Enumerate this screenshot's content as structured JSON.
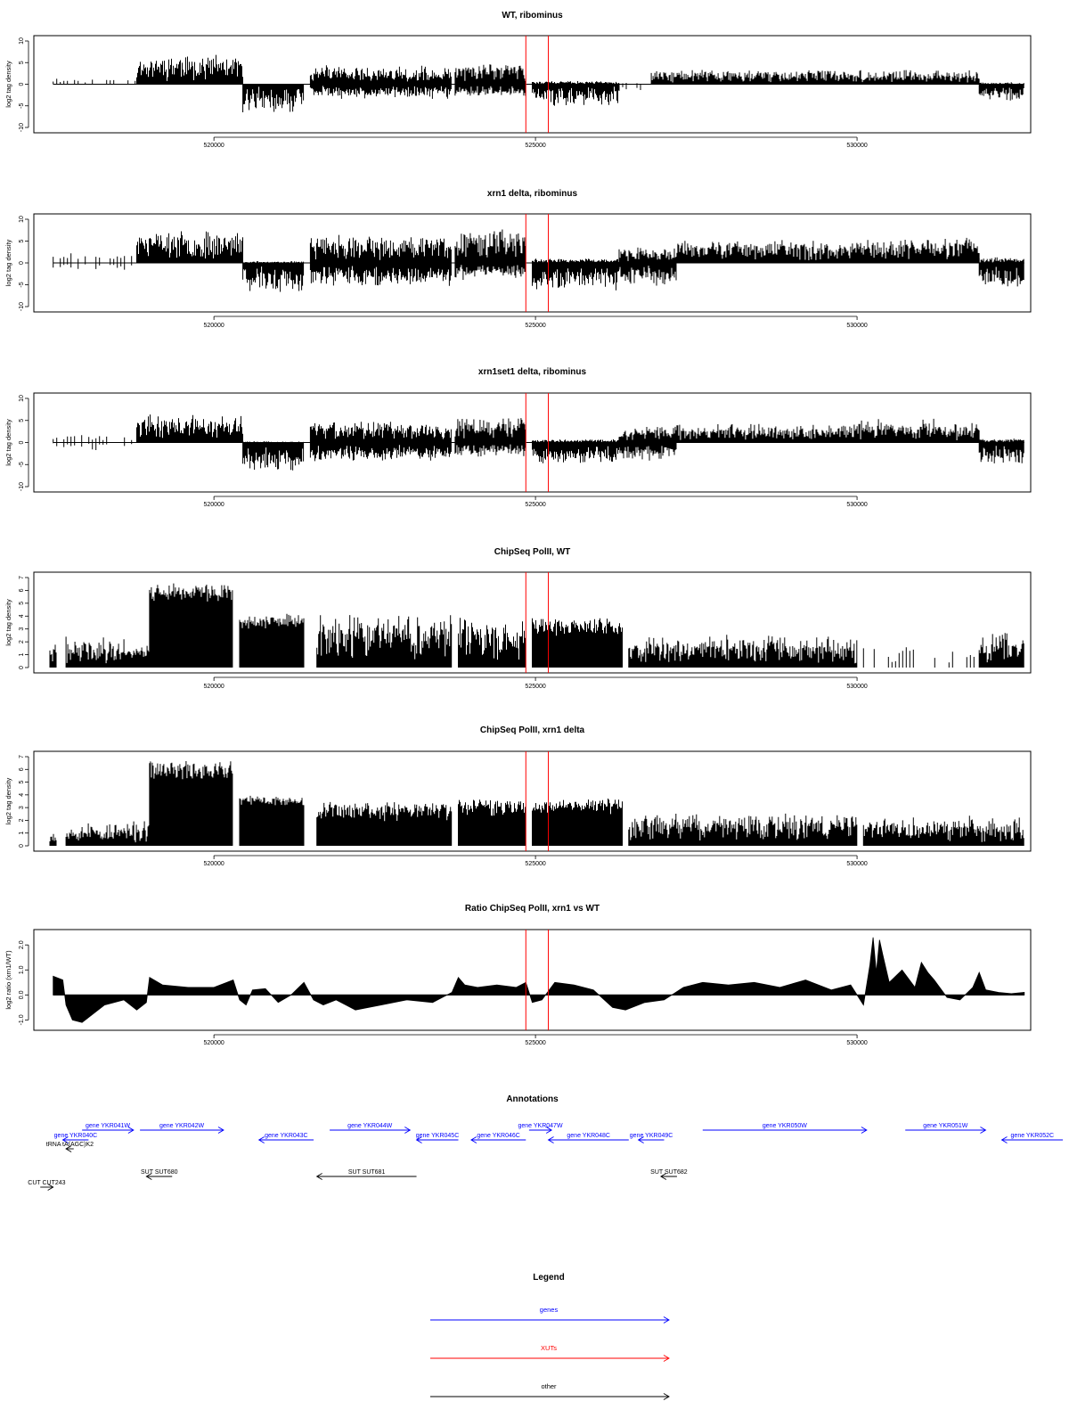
{
  "chart_data": [
    {
      "type": "bar",
      "title": "WT, ribominus",
      "ylabel": "log2 tag density",
      "ylim": [
        -10,
        10
      ],
      "yticks": [
        "-10",
        "-5",
        "0",
        "5",
        "10"
      ],
      "xlim": [
        517200,
        532700
      ],
      "xticks": [
        "520000",
        "525000",
        "530000"
      ],
      "markers": [
        524850,
        525200
      ],
      "seed": 11,
      "signed": true,
      "segments": [
        {
          "x0": 517500,
          "x1": 518800,
          "pos": [
            0.8,
            1.6
          ],
          "neg": [
            0.0,
            0.6
          ],
          "mode": "sparse"
        },
        {
          "x0": 518800,
          "x1": 520450,
          "pos": [
            4.5,
            7.0
          ],
          "neg": [
            0.0,
            0.0
          ],
          "mode": "dense"
        },
        {
          "x0": 520450,
          "x1": 521400,
          "pos": [
            0.0,
            0.0
          ],
          "neg": [
            -3.0,
            -7.0
          ],
          "mode": "dense"
        },
        {
          "x0": 521500,
          "x1": 523700,
          "pos": [
            2.0,
            4.5
          ],
          "neg": [
            -1.5,
            -3.5
          ],
          "mode": "dense"
        },
        {
          "x0": 523750,
          "x1": 524850,
          "pos": [
            3.5,
            5.0
          ],
          "neg": [
            -2.0,
            -3.0
          ],
          "mode": "dense"
        },
        {
          "x0": 524950,
          "x1": 526300,
          "pos": [
            0.3,
            0.8
          ],
          "neg": [
            -3.0,
            -5.0
          ],
          "mode": "dense"
        },
        {
          "x0": 526300,
          "x1": 526800,
          "pos": [
            0.0,
            0.5
          ],
          "neg": [
            -1.0,
            -3.0
          ],
          "mode": "sparse"
        },
        {
          "x0": 526800,
          "x1": 530000,
          "pos": [
            2.0,
            3.5
          ],
          "neg": [
            0.0,
            0.5
          ],
          "mode": "dense"
        },
        {
          "x0": 530000,
          "x1": 531900,
          "pos": [
            1.5,
            3.5
          ],
          "neg": [
            0.0,
            0.8
          ],
          "mode": "dense"
        },
        {
          "x0": 531900,
          "x1": 532600,
          "pos": [
            0.0,
            0.5
          ],
          "neg": [
            -2.5,
            -4.0
          ],
          "mode": "dense"
        }
      ]
    },
    {
      "type": "bar",
      "title": "xrn1 delta, ribominus",
      "ylabel": "log2 tag density",
      "ylim": [
        -10,
        10
      ],
      "yticks": [
        "-10",
        "-5",
        "0",
        "5",
        "10"
      ],
      "xlim": [
        517200,
        532700
      ],
      "xticks": [
        "520000",
        "525000",
        "530000"
      ],
      "markers": [
        524850,
        525200
      ],
      "seed": 23,
      "signed": true,
      "segments": [
        {
          "x0": 517500,
          "x1": 518800,
          "pos": [
            1.5,
            2.5
          ],
          "neg": [
            -0.5,
            -2.0
          ],
          "mode": "sparse"
        },
        {
          "x0": 518800,
          "x1": 520450,
          "pos": [
            4.5,
            7.5
          ],
          "neg": [
            0.0,
            0.0
          ],
          "mode": "dense"
        },
        {
          "x0": 520450,
          "x1": 521400,
          "pos": [
            0.0,
            0.5
          ],
          "neg": [
            -4.0,
            -7.5
          ],
          "mode": "dense"
        },
        {
          "x0": 521500,
          "x1": 523700,
          "pos": [
            4.0,
            6.5
          ],
          "neg": [
            -3.0,
            -5.5
          ],
          "mode": "dense"
        },
        {
          "x0": 523750,
          "x1": 524850,
          "pos": [
            5.0,
            8.0
          ],
          "neg": [
            -2.0,
            -4.0
          ],
          "mode": "dense"
        },
        {
          "x0": 524950,
          "x1": 526300,
          "pos": [
            0.5,
            1.0
          ],
          "neg": [
            -4.0,
            -6.5
          ],
          "mode": "dense"
        },
        {
          "x0": 526300,
          "x1": 527200,
          "pos": [
            2.0,
            4.0
          ],
          "neg": [
            -2.0,
            -6.0
          ],
          "mode": "dense"
        },
        {
          "x0": 527200,
          "x1": 530000,
          "pos": [
            3.5,
            5.5
          ],
          "neg": [
            0.0,
            0.8
          ],
          "mode": "dense"
        },
        {
          "x0": 530000,
          "x1": 531900,
          "pos": [
            4.0,
            6.0
          ],
          "neg": [
            0.0,
            1.0
          ],
          "mode": "dense"
        },
        {
          "x0": 531900,
          "x1": 532600,
          "pos": [
            0.5,
            1.5
          ],
          "neg": [
            -4.0,
            -6.5
          ],
          "mode": "dense"
        }
      ]
    },
    {
      "type": "bar",
      "title": "xrn1set1 delta, ribominus",
      "ylabel": "log2 tag density",
      "ylim": [
        -10,
        10
      ],
      "yticks": [
        "-10",
        "-5",
        "0",
        "5",
        "10"
      ],
      "xlim": [
        517200,
        532700
      ],
      "xticks": [
        "520000",
        "525000",
        "530000"
      ],
      "markers": [
        524850,
        525200
      ],
      "seed": 37,
      "signed": true,
      "segments": [
        {
          "x0": 517500,
          "x1": 518800,
          "pos": [
            1.2,
            2.2
          ],
          "neg": [
            -0.5,
            -2.0
          ],
          "mode": "sparse"
        },
        {
          "x0": 518800,
          "x1": 520450,
          "pos": [
            4.0,
            6.5
          ],
          "neg": [
            0.0,
            0.0
          ],
          "mode": "dense"
        },
        {
          "x0": 520450,
          "x1": 521400,
          "pos": [
            0.0,
            0.3
          ],
          "neg": [
            -4.0,
            -7.0
          ],
          "mode": "dense"
        },
        {
          "x0": 521500,
          "x1": 523700,
          "pos": [
            3.0,
            5.0
          ],
          "neg": [
            -2.5,
            -4.5
          ],
          "mode": "dense"
        },
        {
          "x0": 523750,
          "x1": 524850,
          "pos": [
            4.0,
            6.5
          ],
          "neg": [
            -2.0,
            -3.5
          ],
          "mode": "dense"
        },
        {
          "x0": 524950,
          "x1": 526300,
          "pos": [
            0.3,
            0.8
          ],
          "neg": [
            -3.0,
            -5.0
          ],
          "mode": "dense"
        },
        {
          "x0": 526300,
          "x1": 527200,
          "pos": [
            2.5,
            4.0
          ],
          "neg": [
            -2.0,
            -5.0
          ],
          "mode": "dense"
        },
        {
          "x0": 527200,
          "x1": 530000,
          "pos": [
            2.5,
            4.5
          ],
          "neg": [
            0.0,
            0.8
          ],
          "mode": "dense"
        },
        {
          "x0": 530000,
          "x1": 531900,
          "pos": [
            3.0,
            5.5
          ],
          "neg": [
            0.0,
            1.0
          ],
          "mode": "dense"
        },
        {
          "x0": 531900,
          "x1": 532600,
          "pos": [
            0.5,
            1.0
          ],
          "neg": [
            -3.0,
            -5.5
          ],
          "mode": "dense"
        }
      ]
    },
    {
      "type": "bar",
      "title": "ChipSeq PolII, WT",
      "ylabel": "log2 tag density",
      "ylim": [
        0,
        7
      ],
      "yticks": [
        "0",
        "1",
        "2",
        "3",
        "4",
        "5",
        "6",
        "7"
      ],
      "xlim": [
        517200,
        532700
      ],
      "xticks": [
        "520000",
        "525000",
        "530000"
      ],
      "markers": [
        524850,
        525200
      ],
      "seed": 41,
      "signed": false,
      "segments": [
        {
          "x0": 517450,
          "x1": 517550,
          "pos": [
            1.0,
            2.3
          ],
          "mode": "dense"
        },
        {
          "x0": 517700,
          "x1": 519000,
          "pos": [
            1.2,
            2.5
          ],
          "mode": "dense"
        },
        {
          "x0": 519000,
          "x1": 520300,
          "pos": [
            5.8,
            6.6
          ],
          "mode": "dense",
          "floor": 0.85
        },
        {
          "x0": 520400,
          "x1": 521400,
          "pos": [
            3.5,
            4.2
          ],
          "mode": "dense",
          "floor": 0.8
        },
        {
          "x0": 521600,
          "x1": 523700,
          "pos": [
            3.0,
            4.2
          ],
          "mode": "dense"
        },
        {
          "x0": 523800,
          "x1": 524850,
          "pos": [
            3.0,
            4.0
          ],
          "mode": "dense"
        },
        {
          "x0": 524950,
          "x1": 526350,
          "pos": [
            3.2,
            3.9
          ],
          "mode": "dense",
          "floor": 0.7
        },
        {
          "x0": 526450,
          "x1": 530000,
          "pos": [
            1.5,
            2.6
          ],
          "mode": "dense"
        },
        {
          "x0": 530100,
          "x1": 531900,
          "pos": [
            0.8,
            1.8
          ],
          "mode": "sparse"
        },
        {
          "x0": 531900,
          "x1": 532600,
          "pos": [
            1.5,
            3.0
          ],
          "mode": "dense"
        }
      ]
    },
    {
      "type": "bar",
      "title": "ChipSeq PolII, xrn1 delta",
      "ylabel": "log2 tag density",
      "ylim": [
        0,
        7
      ],
      "yticks": [
        "0",
        "1",
        "2",
        "3",
        "4",
        "5",
        "6",
        "7"
      ],
      "xlim": [
        517200,
        532700
      ],
      "xticks": [
        "520000",
        "525000",
        "530000"
      ],
      "markers": [
        524850,
        525200
      ],
      "seed": 53,
      "signed": false,
      "segments": [
        {
          "x0": 517450,
          "x1": 517550,
          "pos": [
            0.8,
            1.6
          ],
          "mode": "dense"
        },
        {
          "x0": 517700,
          "x1": 519000,
          "pos": [
            1.0,
            2.0
          ],
          "mode": "dense"
        },
        {
          "x0": 519000,
          "x1": 520300,
          "pos": [
            5.5,
            6.8
          ],
          "mode": "dense",
          "floor": 0.9
        },
        {
          "x0": 520400,
          "x1": 521400,
          "pos": [
            3.5,
            4.0
          ],
          "mode": "dense",
          "floor": 0.85
        },
        {
          "x0": 521600,
          "x1": 523700,
          "pos": [
            3.0,
            3.6
          ],
          "mode": "dense",
          "floor": 0.6
        },
        {
          "x0": 523800,
          "x1": 524850,
          "pos": [
            3.3,
            3.8
          ],
          "mode": "dense",
          "floor": 0.6
        },
        {
          "x0": 524950,
          "x1": 526350,
          "pos": [
            3.3,
            3.8
          ],
          "mode": "dense",
          "floor": 0.7
        },
        {
          "x0": 526450,
          "x1": 530000,
          "pos": [
            1.8,
            2.6
          ],
          "mode": "dense"
        },
        {
          "x0": 530100,
          "x1": 531900,
          "pos": [
            1.5,
            2.4
          ],
          "mode": "dense"
        },
        {
          "x0": 531900,
          "x1": 532600,
          "pos": [
            1.5,
            2.4
          ],
          "mode": "dense"
        }
      ]
    },
    {
      "type": "area",
      "title": "Ratio ChipSeq PolII, xrn1 vs WT",
      "ylabel": "log2 ratio (xrn1/WT)",
      "ylim": [
        -1.2,
        2.4
      ],
      "yticks": [
        "-1.0",
        "0.0",
        "1.0",
        "2.0"
      ],
      "yticks_values": [
        -1,
        0,
        1,
        2
      ],
      "xlim": [
        517200,
        532700
      ],
      "xticks": [
        "520000",
        "525000",
        "530000"
      ],
      "markers": [
        524850,
        525200
      ],
      "x": [
        517500,
        517650,
        517700,
        517800,
        517950,
        518050,
        518300,
        518600,
        518800,
        518950,
        519000,
        519200,
        519600,
        520000,
        520300,
        520400,
        520500,
        520600,
        520800,
        521000,
        521200,
        521400,
        521550,
        521700,
        521900,
        522200,
        522600,
        523000,
        523400,
        523700,
        523800,
        523900,
        524100,
        524400,
        524700,
        524850,
        524950,
        525100,
        525300,
        525600,
        525900,
        526200,
        526400,
        526700,
        527000,
        527300,
        527600,
        528000,
        528400,
        528800,
        529200,
        529600,
        529900,
        530100,
        530200,
        530250,
        530300,
        530350,
        530400,
        530500,
        530700,
        530900,
        531000,
        531100,
        531200,
        531400,
        531600,
        531800,
        531900,
        532000,
        532200,
        532400,
        532600
      ],
      "y": [
        0.75,
        0.6,
        -0.4,
        -1.0,
        -1.1,
        -0.9,
        -0.4,
        -0.2,
        -0.6,
        -0.3,
        0.7,
        0.4,
        0.3,
        0.3,
        0.6,
        -0.2,
        -0.4,
        0.2,
        0.25,
        -0.3,
        0.0,
        0.5,
        -0.2,
        -0.4,
        -0.2,
        -0.6,
        -0.4,
        -0.2,
        -0.3,
        0.1,
        0.7,
        0.4,
        0.3,
        0.4,
        0.3,
        0.5,
        -0.3,
        -0.2,
        0.5,
        0.4,
        0.2,
        -0.5,
        -0.6,
        -0.3,
        -0.2,
        0.3,
        0.5,
        0.4,
        0.5,
        0.3,
        0.6,
        0.2,
        0.4,
        -0.4,
        1.2,
        2.3,
        0.9,
        2.2,
        1.6,
        0.5,
        1.0,
        0.3,
        1.3,
        0.9,
        0.6,
        -0.1,
        -0.2,
        0.3,
        0.9,
        0.2,
        0.1,
        0.05,
        0.1
      ]
    }
  ],
  "annotations": {
    "title": "Annotations",
    "xlim": [
      517200,
      532700
    ],
    "features": [
      {
        "label": "gene YKR041W",
        "x0": 517950,
        "x1": 518750,
        "row": 1,
        "dir": "right",
        "color": "#0000ff"
      },
      {
        "label": "gene YKR040C",
        "x0": 517650,
        "x1": 518050,
        "row": 2,
        "dir": "left",
        "color": "#0000ff"
      },
      {
        "label": "gene YKR042W",
        "x0": 518850,
        "x1": 520150,
        "row": 1,
        "dir": "right",
        "color": "#0000ff"
      },
      {
        "label": "gene YKR043C",
        "x0": 520700,
        "x1": 521550,
        "row": 2,
        "dir": "left",
        "color": "#0000ff"
      },
      {
        "label": "gene YKR044W",
        "x0": 521800,
        "x1": 523050,
        "row": 1,
        "dir": "right",
        "color": "#0000ff"
      },
      {
        "label": "gene YKR045C",
        "x0": 523150,
        "x1": 523800,
        "row": 2,
        "dir": "left",
        "color": "#0000ff"
      },
      {
        "label": "gene YKR046C",
        "x0": 524000,
        "x1": 524850,
        "row": 2,
        "dir": "left",
        "color": "#0000ff"
      },
      {
        "label": "gene YKR047W",
        "x0": 524900,
        "x1": 525250,
        "row": 1,
        "dir": "right",
        "color": "#0000ff"
      },
      {
        "label": "gene YKR048C",
        "x0": 525200,
        "x1": 526450,
        "row": 2,
        "dir": "left",
        "color": "#0000ff"
      },
      {
        "label": "gene YKR049C",
        "x0": 526600,
        "x1": 527000,
        "row": 2,
        "dir": "left",
        "color": "#0000ff"
      },
      {
        "label": "gene YKR050W",
        "x0": 527600,
        "x1": 530150,
        "row": 1,
        "dir": "right",
        "color": "#0000ff"
      },
      {
        "label": "gene YKR051W",
        "x0": 530750,
        "x1": 532000,
        "row": 1,
        "dir": "right",
        "color": "#0000ff"
      },
      {
        "label": "gene YKR052C",
        "x0": 532250,
        "x1": 533200,
        "row": 2,
        "dir": "left",
        "color": "#0000ff"
      },
      {
        "label": "tRNA tA(AGC)K2",
        "x0": 517700,
        "x1": 517820,
        "row": 3,
        "dir": "left",
        "color": "#000000"
      },
      {
        "label": "SUT SUT680",
        "x0": 518950,
        "x1": 519350,
        "row": 4,
        "dir": "left",
        "color": "#000000"
      },
      {
        "label": "SUT SUT681",
        "x0": 521600,
        "x1": 523150,
        "row": 4,
        "dir": "left",
        "color": "#000000"
      },
      {
        "label": "SUT SUT682",
        "x0": 526950,
        "x1": 527200,
        "row": 4,
        "dir": "left",
        "color": "#000000"
      },
      {
        "label": "CUT CUT243",
        "x0": 517300,
        "x1": 517500,
        "row": 5,
        "dir": "right",
        "color": "#000000"
      }
    ]
  },
  "legend": {
    "title": "Legend",
    "entries": [
      {
        "label": "genes",
        "color": "#0000ff"
      },
      {
        "label": "XUTs",
        "color": "#ff0000"
      },
      {
        "label": "other",
        "color": "#000000"
      }
    ]
  }
}
